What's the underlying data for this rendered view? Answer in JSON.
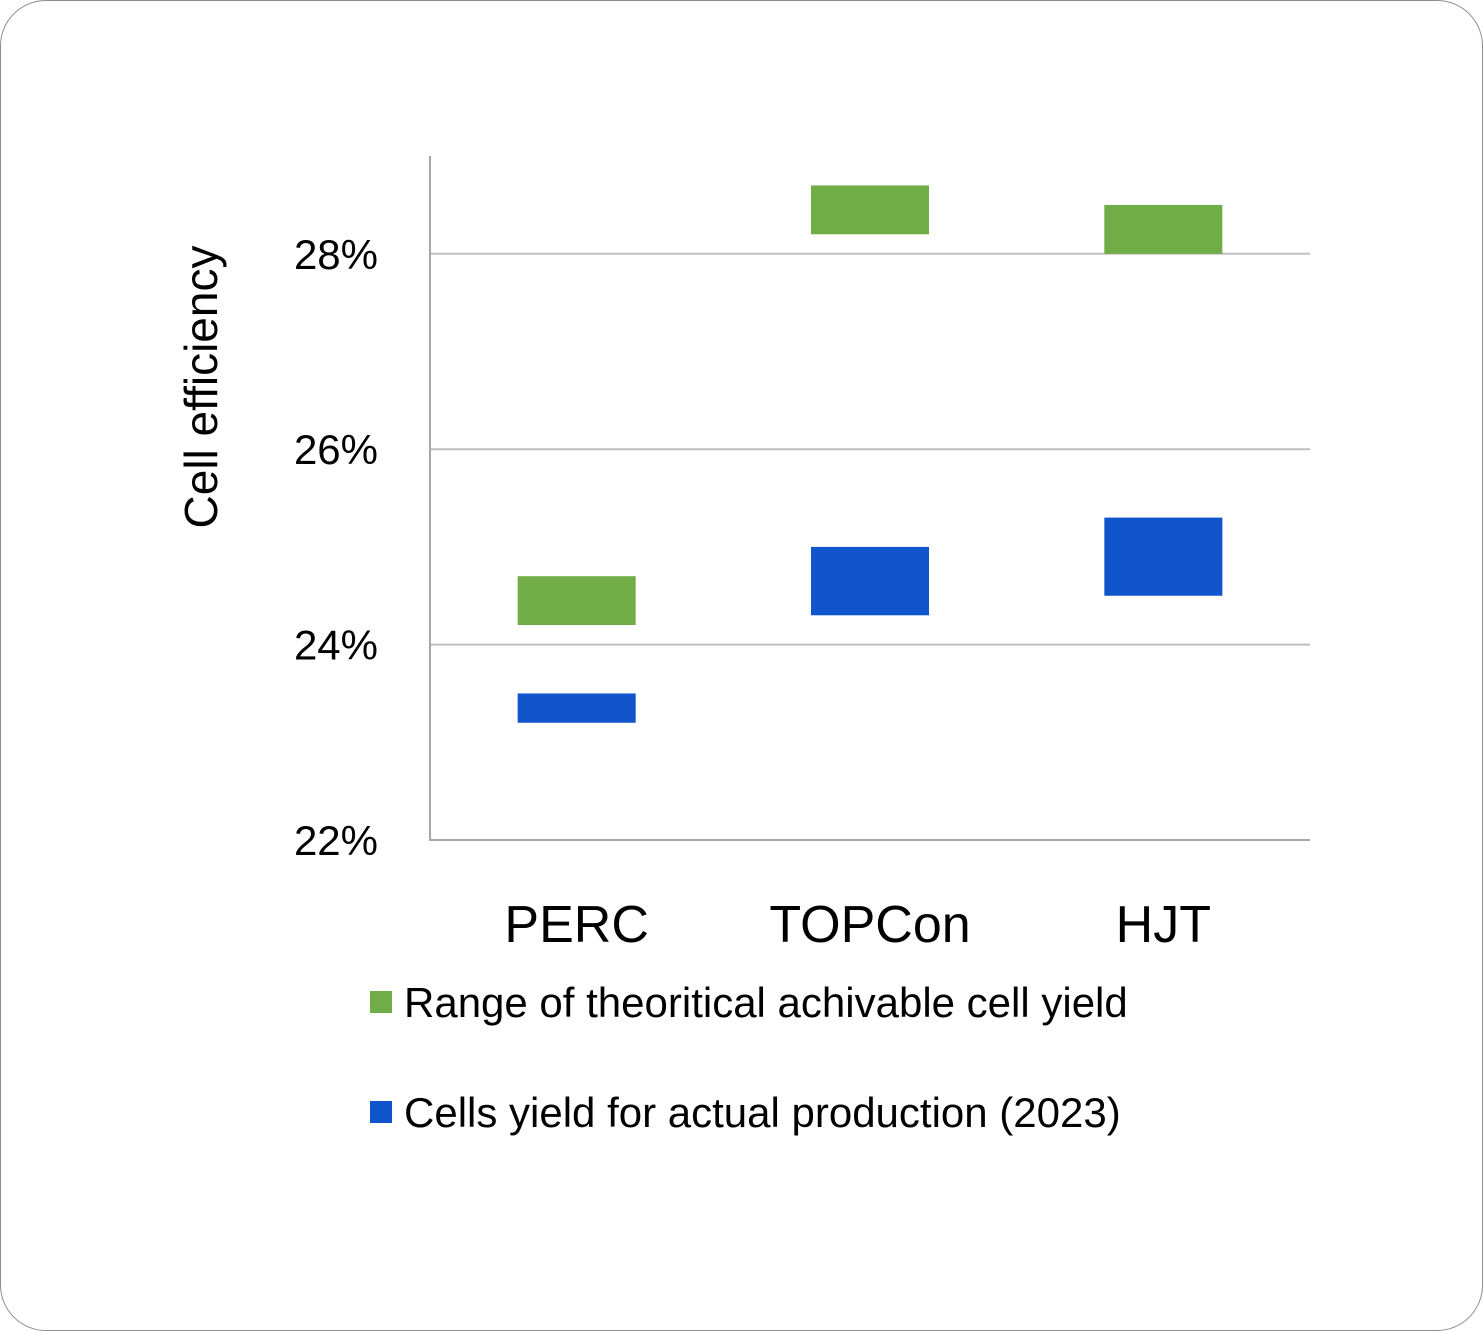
{
  "chart_data": {
    "type": "bar",
    "subtype": "floating-range",
    "title": "",
    "xlabel": "",
    "ylabel": "Cell efficiency",
    "ylim": [
      22,
      29
    ],
    "yticks": [
      22,
      24,
      26,
      28
    ],
    "ytick_labels": [
      "22%",
      "24%",
      "26%",
      "28%"
    ],
    "grid": true,
    "legend_position": "bottom",
    "categories": [
      "PERC",
      "TOPCon",
      "HJT"
    ],
    "series": [
      {
        "name": "Range of theoritical achivable cell yield",
        "color": "#70ad47",
        "ranges": [
          [
            24.2,
            24.7
          ],
          [
            28.2,
            28.7
          ],
          [
            28.0,
            28.5
          ]
        ]
      },
      {
        "name": "Cells yield for actual production (2023)",
        "color": "#1155cc",
        "ranges": [
          [
            23.2,
            23.5
          ],
          [
            24.3,
            25.0
          ],
          [
            24.5,
            25.3
          ]
        ]
      }
    ]
  }
}
